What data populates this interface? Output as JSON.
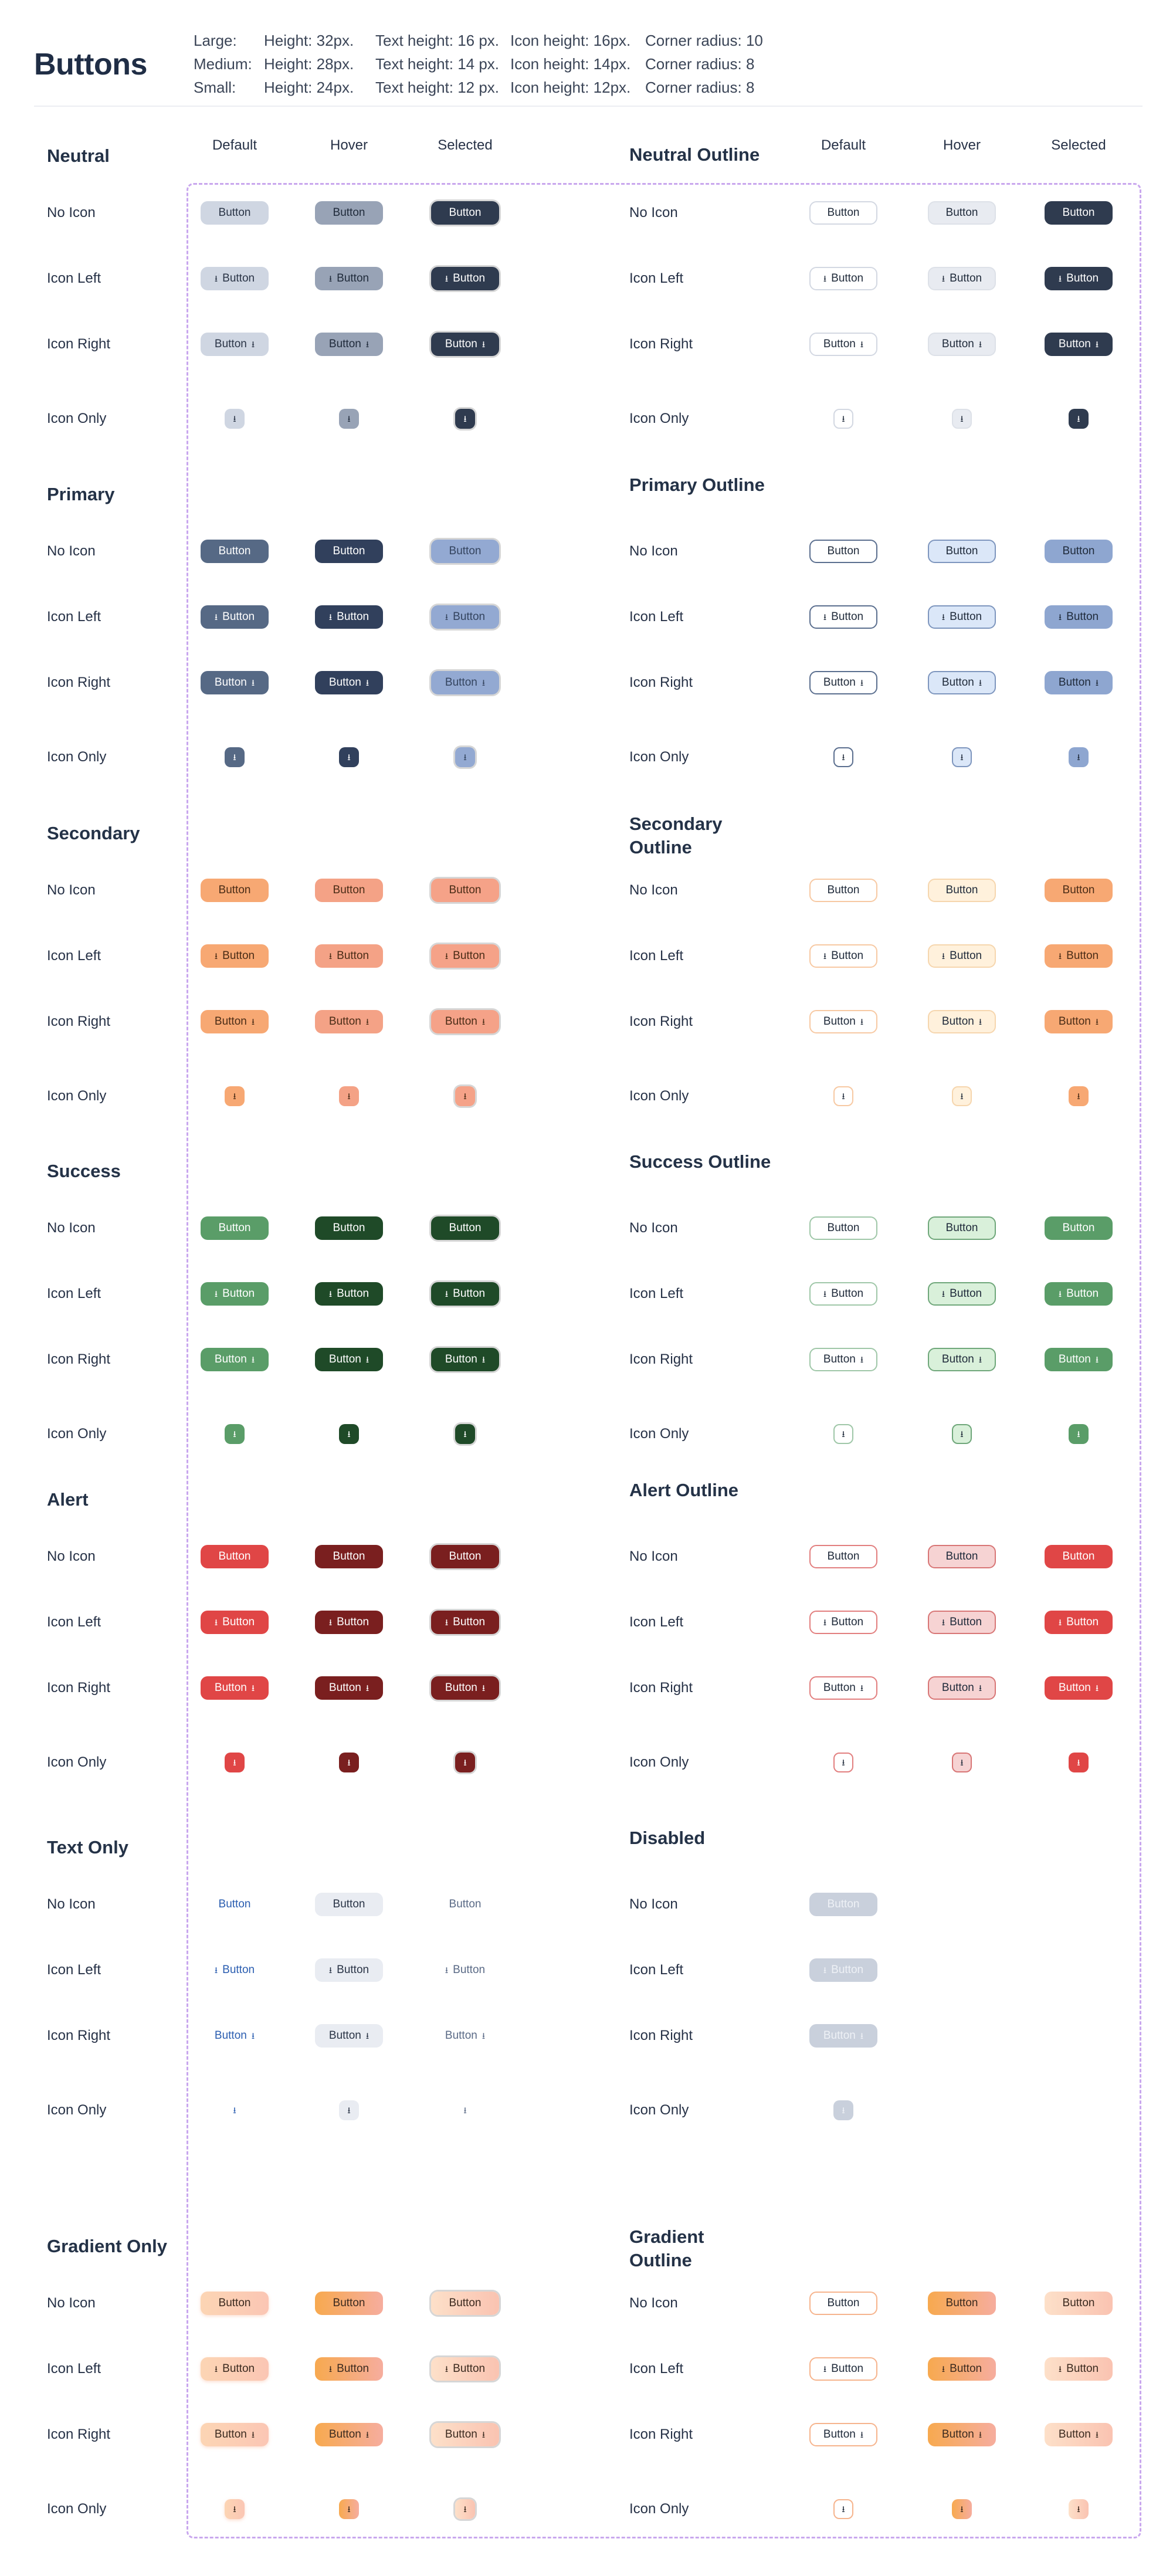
{
  "page": {
    "title": "Buttons",
    "button_text": "Button",
    "icon": "download-icon",
    "icon_glyph": "⭳"
  },
  "specs": [
    {
      "size": "Large:",
      "height": "Height: 32px.",
      "text": "Text height: 16 px.",
      "icon": "Icon height: 16px.",
      "radius": "Corner radius: 10"
    },
    {
      "size": "Medium:",
      "height": "Height: 28px.",
      "text": "Text height: 14 px.",
      "icon": "Icon height: 14px.",
      "radius": "Corner radius: 8"
    },
    {
      "size": "Small:",
      "height": "Height: 24px.",
      "text": "Text height: 12 px.",
      "icon": "Icon height: 12px.",
      "radius": "Corner radius: 8"
    }
  ],
  "columns": {
    "default": "Default",
    "hover": "Hover",
    "selected": "Selected"
  },
  "row_labels": [
    "No Icon",
    "Icon Left",
    "Icon Right",
    "Icon Only"
  ],
  "sections_left": [
    "Neutral",
    "Primary",
    "Secondary",
    "Success",
    "Alert",
    "Text Only",
    "Gradient Only"
  ],
  "sections_right": [
    "Neutral Outline",
    "Primary Outline",
    "Secondary Outline",
    "Success Outline",
    "Alert Outline",
    "Disabled",
    "Gradient Outline"
  ],
  "colors": {
    "neutral": "#2f3b4f",
    "primary": "#566985",
    "secondary": "#f7a873",
    "success": "#5a9d68",
    "alert": "#e04646",
    "disabled": "#c9d0dc",
    "dashed_frame": "#c9a7ee"
  }
}
